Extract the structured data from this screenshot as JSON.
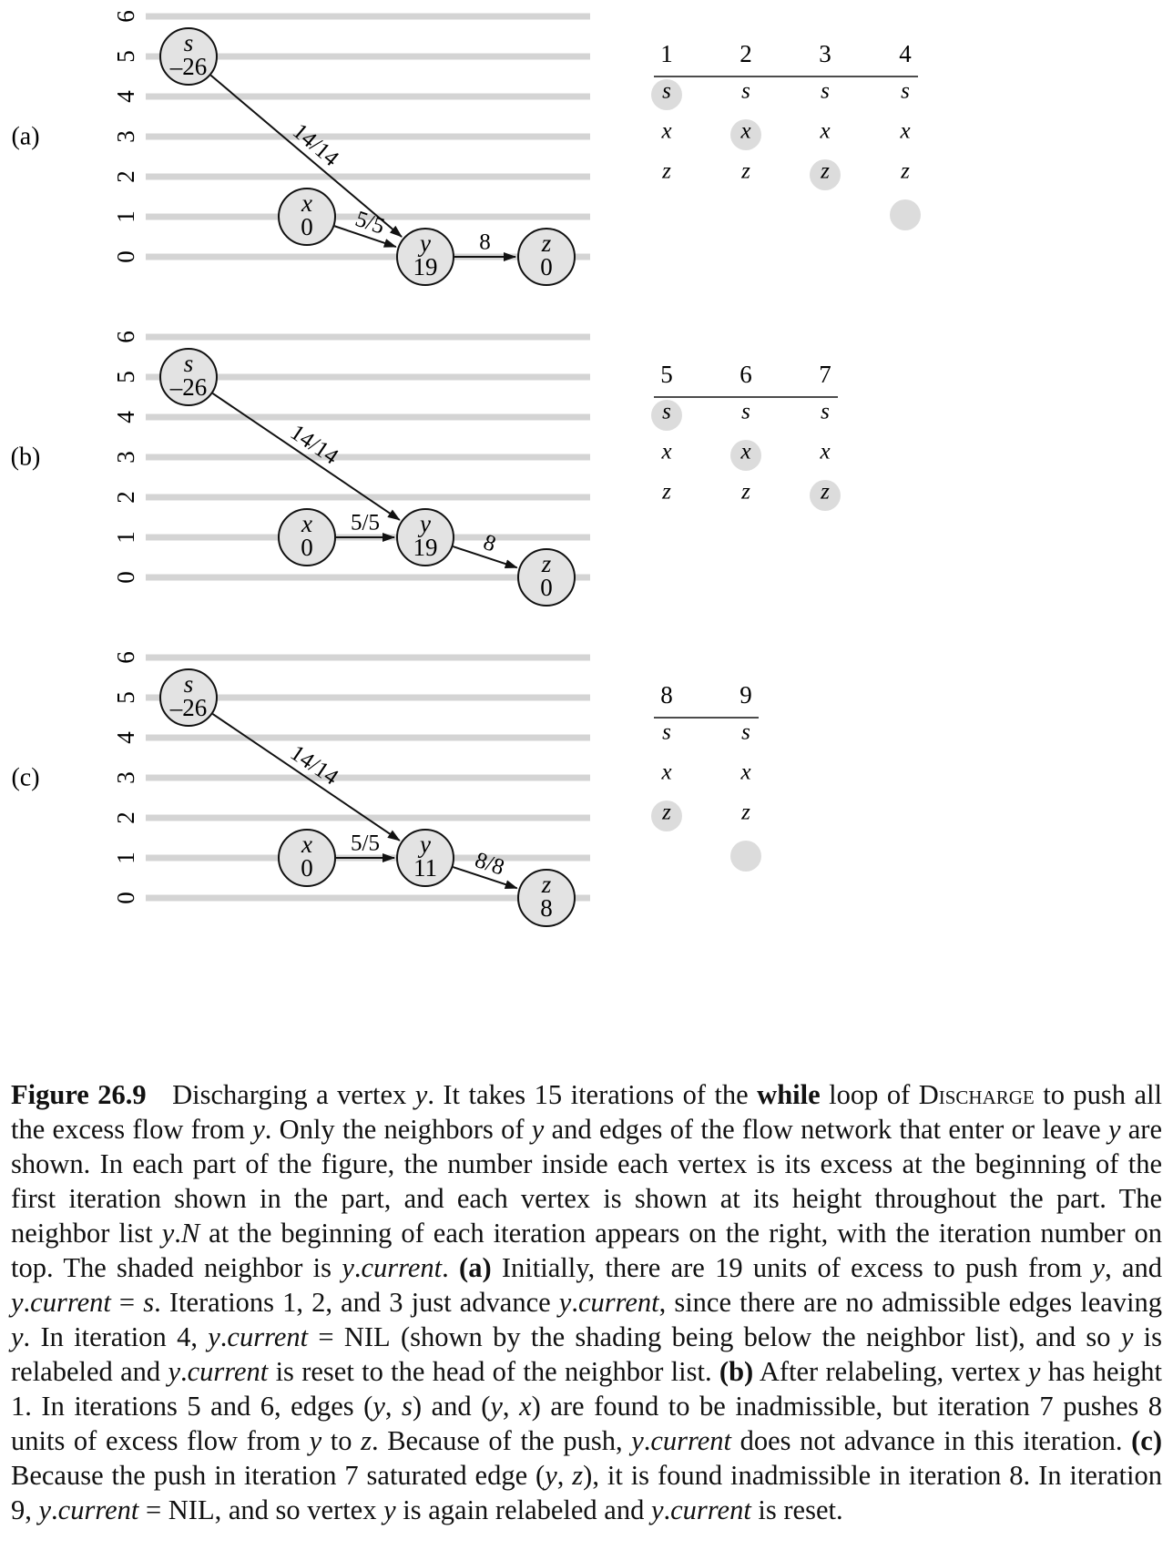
{
  "panels": [
    {
      "label": "(a)",
      "height_ticks": [
        "6",
        "5",
        "4",
        "3",
        "2",
        "1",
        "0"
      ],
      "vertices": {
        "s": {
          "name": "s",
          "excess": "–26",
          "height": 5
        },
        "x": {
          "name": "x",
          "excess": "0",
          "height": 1
        },
        "y": {
          "name": "y",
          "excess": "19",
          "height": 0
        },
        "z": {
          "name": "z",
          "excess": "0",
          "height": 0
        }
      },
      "edges": [
        {
          "from": "s",
          "to": "y",
          "label": "14/14"
        },
        {
          "from": "x",
          "to": "y",
          "label": "5/5"
        },
        {
          "from": "y",
          "to": "z",
          "label": "8"
        }
      ],
      "iterations": [
        {
          "number": "1",
          "current": "s"
        },
        {
          "number": "2",
          "current": "x"
        },
        {
          "number": "3",
          "current": "z"
        },
        {
          "number": "4",
          "current": "NIL"
        }
      ]
    },
    {
      "label": "(b)",
      "height_ticks": [
        "6",
        "5",
        "4",
        "3",
        "2",
        "1",
        "0"
      ],
      "vertices": {
        "s": {
          "name": "s",
          "excess": "–26",
          "height": 5
        },
        "x": {
          "name": "x",
          "excess": "0",
          "height": 1
        },
        "y": {
          "name": "y",
          "excess": "19",
          "height": 1
        },
        "z": {
          "name": "z",
          "excess": "0",
          "height": 0
        }
      },
      "edges": [
        {
          "from": "s",
          "to": "y",
          "label": "14/14"
        },
        {
          "from": "x",
          "to": "y",
          "label": "5/5"
        },
        {
          "from": "y",
          "to": "z",
          "label": "8"
        }
      ],
      "iterations": [
        {
          "number": "5",
          "current": "s"
        },
        {
          "number": "6",
          "current": "x"
        },
        {
          "number": "7",
          "current": "z"
        }
      ]
    },
    {
      "label": "(c)",
      "height_ticks": [
        "6",
        "5",
        "4",
        "3",
        "2",
        "1",
        "0"
      ],
      "vertices": {
        "s": {
          "name": "s",
          "excess": "–26",
          "height": 5
        },
        "x": {
          "name": "x",
          "excess": "0",
          "height": 1
        },
        "y": {
          "name": "y",
          "excess": "11",
          "height": 1
        },
        "z": {
          "name": "z",
          "excess": "8",
          "height": 0
        }
      },
      "edges": [
        {
          "from": "s",
          "to": "y",
          "label": "14/14"
        },
        {
          "from": "x",
          "to": "y",
          "label": "5/5"
        },
        {
          "from": "y",
          "to": "z",
          "label": "8/8"
        }
      ],
      "iterations": [
        {
          "number": "8",
          "current": "z"
        },
        {
          "number": "9",
          "current": "NIL"
        }
      ]
    }
  ],
  "neighbor_list": [
    "s",
    "x",
    "z"
  ],
  "colors": {
    "vertex_fill": "#e3e3e3",
    "shade": "#dcdcdc",
    "grid": "#d4d4d4"
  },
  "caption": {
    "figure_label": "Figure 26.9",
    "lines": [
      [
        {
          "t": "Discharging a vertex "
        },
        {
          "t": "y",
          "s": "it"
        },
        {
          "t": ". It takes 15 iterations of the "
        },
        {
          "t": "while",
          "s": "b"
        },
        {
          "t": " loop of "
        },
        {
          "t": "Discharge",
          "s": "sc"
        },
        {
          "t": " to push all the excess flow from "
        },
        {
          "t": "y",
          "s": "it"
        },
        {
          "t": ". Only the neighbors of "
        },
        {
          "t": "y",
          "s": "it"
        },
        {
          "t": " and edges of the flow network that enter or leave "
        },
        {
          "t": "y",
          "s": "it"
        },
        {
          "t": " are shown. In each part of the figure, the number inside each vertex is its excess at the beginning of the first iteration shown in the part, and each vertex is shown at its height throughout the part. The neighbor list "
        },
        {
          "t": "y",
          "s": "it"
        },
        {
          "t": "."
        },
        {
          "t": "N",
          "s": "it"
        },
        {
          "t": " at the beginning of each iteration appears on the right, with the iteration number on top. The shaded neighbor is "
        },
        {
          "t": "y",
          "s": "it"
        },
        {
          "t": "."
        },
        {
          "t": "current",
          "s": "it"
        },
        {
          "t": ". "
        },
        {
          "t": "(a)",
          "s": "b"
        },
        {
          "t": " Initially, there are 19 units of excess to push from "
        },
        {
          "t": "y",
          "s": "it"
        },
        {
          "t": ", and "
        },
        {
          "t": "y",
          "s": "it"
        },
        {
          "t": "."
        },
        {
          "t": "current",
          "s": "it"
        },
        {
          "t": " = "
        },
        {
          "t": "s",
          "s": "it"
        },
        {
          "t": ". Iterations 1, 2, and 3 just advance "
        },
        {
          "t": "y",
          "s": "it"
        },
        {
          "t": "."
        },
        {
          "t": "current",
          "s": "it"
        },
        {
          "t": ", since there are no admissible edges leaving "
        },
        {
          "t": "y",
          "s": "it"
        },
        {
          "t": ". In iteration 4, "
        },
        {
          "t": "y",
          "s": "it"
        },
        {
          "t": "."
        },
        {
          "t": "current",
          "s": "it"
        },
        {
          "t": " = "
        },
        {
          "t": "NIL",
          "s": "sc"
        },
        {
          "t": " (shown by the shading being below the neighbor list), and so "
        },
        {
          "t": "y",
          "s": "it"
        },
        {
          "t": " is relabeled and "
        },
        {
          "t": "y",
          "s": "it"
        },
        {
          "t": "."
        },
        {
          "t": "current",
          "s": "it"
        },
        {
          "t": " is reset to the head of the neighbor list. "
        },
        {
          "t": "(b)",
          "s": "b"
        },
        {
          "t": " After relabeling, vertex "
        },
        {
          "t": "y",
          "s": "it"
        },
        {
          "t": " has height 1. In iterations 5 and 6, edges ("
        },
        {
          "t": "y",
          "s": "it"
        },
        {
          "t": ", "
        },
        {
          "t": "s",
          "s": "it"
        },
        {
          "t": ") and ("
        },
        {
          "t": "y",
          "s": "it"
        },
        {
          "t": ", "
        },
        {
          "t": "x",
          "s": "it"
        },
        {
          "t": ") are found to be inadmissible, but iteration 7 pushes 8 units of excess flow from "
        },
        {
          "t": "y",
          "s": "it"
        },
        {
          "t": " to "
        },
        {
          "t": "z",
          "s": "it"
        },
        {
          "t": ". Because of the push, "
        },
        {
          "t": "y",
          "s": "it"
        },
        {
          "t": "."
        },
        {
          "t": "current",
          "s": "it"
        },
        {
          "t": " does not advance in this iteration. "
        },
        {
          "t": "(c)",
          "s": "b"
        },
        {
          "t": " Because the push in iteration 7 saturated edge ("
        },
        {
          "t": "y",
          "s": "it"
        },
        {
          "t": ", "
        },
        {
          "t": "z",
          "s": "it"
        },
        {
          "t": "), it is found inadmissible in iteration 8. In iteration 9, "
        },
        {
          "t": "y",
          "s": "it"
        },
        {
          "t": "."
        },
        {
          "t": "current",
          "s": "it"
        },
        {
          "t": " = "
        },
        {
          "t": "NIL",
          "s": "sc"
        },
        {
          "t": ", and so vertex "
        },
        {
          "t": "y",
          "s": "it"
        },
        {
          "t": " is again relabeled and "
        },
        {
          "t": "y",
          "s": "it"
        },
        {
          "t": "."
        },
        {
          "t": "current",
          "s": "it"
        },
        {
          "t": " is reset."
        }
      ]
    ]
  }
}
